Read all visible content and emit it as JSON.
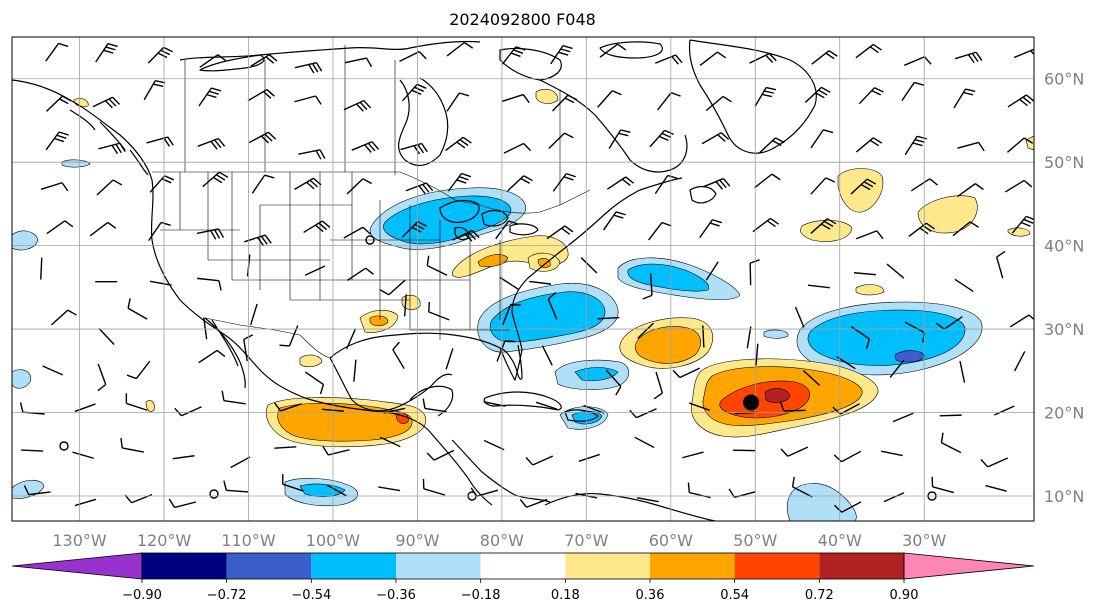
{
  "title": "2024092800 F048",
  "map": {
    "lon_range": [
      -138,
      -17
    ],
    "lat_range": [
      7,
      65
    ],
    "lon_labels": [
      "130°W",
      "120°W",
      "110°W",
      "100°W",
      "90°W",
      "80°W",
      "70°W",
      "60°W",
      "50°W",
      "40°W",
      "30°W"
    ],
    "lon_values": [
      -130,
      -120,
      -110,
      -100,
      -90,
      -80,
      -70,
      -60,
      -50,
      -40,
      -30
    ],
    "lat_labels": [
      "10°N",
      "20°N",
      "30°N",
      "40°N",
      "50°N",
      "60°N"
    ],
    "lat_values": [
      10,
      20,
      30,
      40,
      50,
      60
    ],
    "storm_marker": {
      "lon": -50.5,
      "lat": 21.2
    }
  },
  "colorbar": {
    "ticks": [
      "−0.90",
      "−0.72",
      "−0.54",
      "−0.36",
      "−0.18",
      "0.18",
      "0.36",
      "0.54",
      "0.72",
      "0.90"
    ],
    "colors": [
      "#9932cc",
      "#000080",
      "#3a5fcd",
      "#00bfff",
      "#b0e0f8",
      "#ffffff",
      "#fde98c",
      "#ffa500",
      "#ff4500",
      "#b22222",
      "#ff86b4"
    ]
  },
  "colors": {
    "coast": "#000000",
    "grid": "#a0a0a0"
  }
}
